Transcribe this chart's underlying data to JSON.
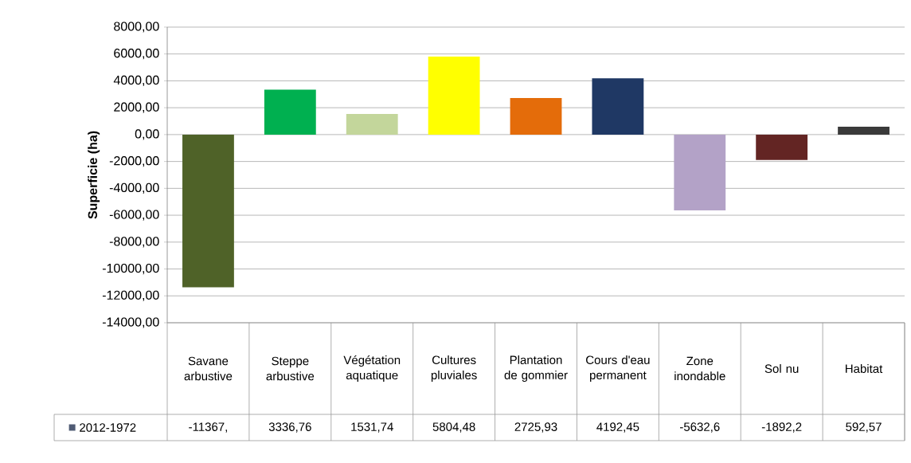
{
  "chart_data": {
    "type": "bar",
    "ylabel": "Superficie (ha)",
    "categories": [
      "Savane arbustive",
      "Steppe arbustive",
      "Végétation aquatique",
      "Cultures pluviales",
      "Plantation de gommier",
      "Cours d'eau permanent",
      "Zone inondable",
      "Sol nu",
      "Habitat"
    ],
    "series": [
      {
        "name": "2012-1972",
        "color": "#4f5b74",
        "values": [
          -11367,
          3336.76,
          1531.74,
          5804.48,
          2725.93,
          4192.45,
          -5632.6,
          -1892.2,
          592.57
        ],
        "colors": [
          "#4f6228",
          "#00b050",
          "#c3d69b",
          "#ffff00",
          "#e46c0a",
          "#1f3864",
          "#b3a2c7",
          "#632523",
          "#3a3a3a"
        ],
        "value_labels": [
          "-11367,",
          "3336,76",
          "1531,74",
          "5804,48",
          "2725,93",
          "4192,45",
          "-5632,6",
          "-1892,2",
          "592,57"
        ]
      }
    ],
    "ylim": [
      -14000,
      8000
    ],
    "yticks": [
      {
        "value": -14000,
        "label": "-14000,00"
      },
      {
        "value": -12000,
        "label": "-12000,00"
      },
      {
        "value": -10000,
        "label": "-10000,00"
      },
      {
        "value": -8000,
        "label": "-8000,00"
      },
      {
        "value": -6000,
        "label": "-6000,00"
      },
      {
        "value": -4000,
        "label": "-4000,00"
      },
      {
        "value": -2000,
        "label": "-2000,00"
      },
      {
        "value": 0,
        "label": "0,00"
      },
      {
        "value": 2000,
        "label": "2000,00"
      },
      {
        "value": 4000,
        "label": "4000,00"
      },
      {
        "value": 6000,
        "label": "6000,00"
      },
      {
        "value": 8000,
        "label": "8000,00"
      }
    ],
    "grid": "y",
    "legend": "bottom left"
  }
}
